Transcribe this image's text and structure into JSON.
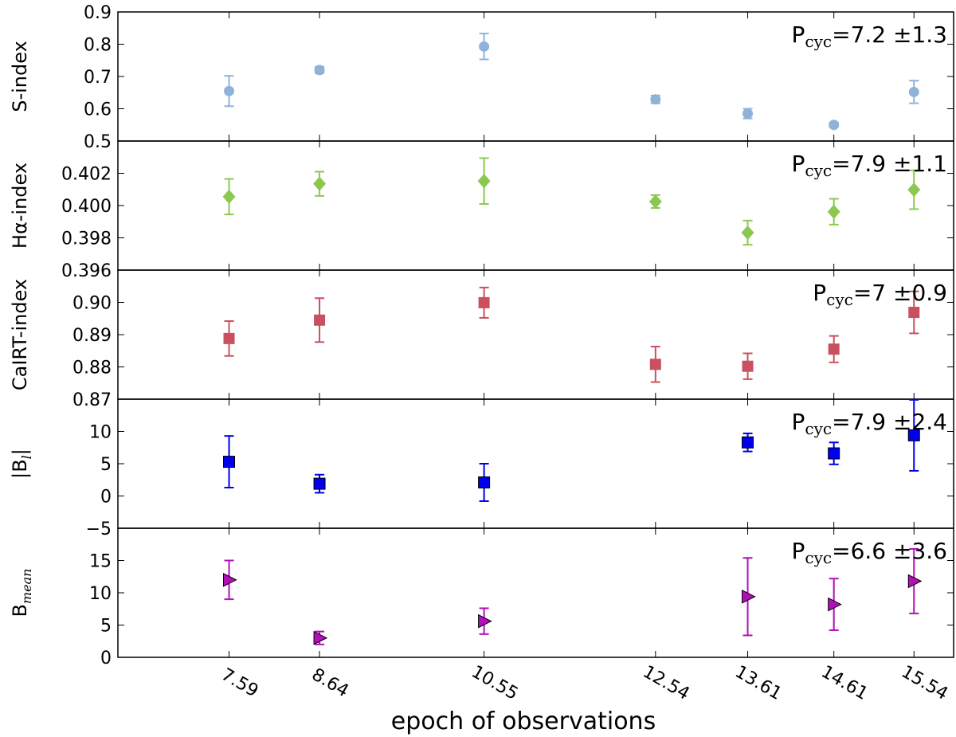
{
  "chart_data": {
    "type": "scatter",
    "xlabel": "epoch of observations",
    "x": [
      7.59,
      8.64,
      10.55,
      12.54,
      13.61,
      14.61,
      15.54
    ],
    "x_tick_labels": [
      "7.59",
      "8.64",
      "10.55",
      "12.54",
      "13.61",
      "14.61",
      "15.54"
    ],
    "xlim": [
      6.3,
      16.0
    ],
    "panels": [
      {
        "ylabel": "S-index",
        "ylabel_sub": "",
        "color": "#8fb3d8",
        "marker": "circle",
        "ylim": [
          0.5,
          0.9
        ],
        "yticks": [
          0.5,
          0.6,
          0.7,
          0.8,
          0.9
        ],
        "ytick_labels": [
          "0.5",
          "0.6",
          "0.7",
          "0.8",
          "0.9"
        ],
        "points": [
          {
            "x": 7.59,
            "y": 0.655,
            "err": 0.047
          },
          {
            "x": 8.64,
            "y": 0.72,
            "err": 0.01
          },
          {
            "x": 10.55,
            "y": 0.793,
            "err": 0.04
          },
          {
            "x": 12.54,
            "y": 0.629,
            "err": 0.012
          },
          {
            "x": 13.61,
            "y": 0.585,
            "err": 0.015
          },
          {
            "x": 14.61,
            "y": 0.55,
            "err": 0.007
          },
          {
            "x": 15.54,
            "y": 0.652,
            "err": 0.035
          }
        ],
        "annotation": {
          "base": "P",
          "sub": "cyc",
          "text": "=7.2 ±1.3"
        }
      },
      {
        "ylabel": "Hα-index",
        "ylabel_sub": "",
        "color": "#8cc850",
        "marker": "diamond",
        "ylim": [
          0.396,
          0.404
        ],
        "yticks": [
          0.396,
          0.398,
          0.4,
          0.402
        ],
        "ytick_labels": [
          "0.396",
          "0.398",
          "0.400",
          "0.402"
        ],
        "points": [
          {
            "x": 7.59,
            "y": 0.40055,
            "err": 0.0011
          },
          {
            "x": 8.64,
            "y": 0.40135,
            "err": 0.00075
          },
          {
            "x": 10.55,
            "y": 0.40152,
            "err": 0.00142
          },
          {
            "x": 12.54,
            "y": 0.40025,
            "err": 0.0004
          },
          {
            "x": 13.61,
            "y": 0.39832,
            "err": 0.00075
          },
          {
            "x": 14.61,
            "y": 0.39962,
            "err": 0.0008
          },
          {
            "x": 15.54,
            "y": 0.40098,
            "err": 0.0012
          }
        ],
        "annotation": {
          "base": "P",
          "sub": "cyc",
          "text": "=7.9 ±1.1"
        }
      },
      {
        "ylabel": "CaIRT-index",
        "ylabel_sub": "",
        "color": "#c8505f",
        "marker": "square",
        "ylim": [
          0.87,
          0.91
        ],
        "yticks": [
          0.87,
          0.88,
          0.89,
          0.9
        ],
        "ytick_labels": [
          "0.87",
          "0.88",
          "0.89",
          "0.90"
        ],
        "points": [
          {
            "x": 7.59,
            "y": 0.8888,
            "err": 0.0054
          },
          {
            "x": 8.64,
            "y": 0.8945,
            "err": 0.0068
          },
          {
            "x": 10.55,
            "y": 0.8999,
            "err": 0.0047
          },
          {
            "x": 12.54,
            "y": 0.8808,
            "err": 0.0055
          },
          {
            "x": 13.61,
            "y": 0.8802,
            "err": 0.004
          },
          {
            "x": 14.61,
            "y": 0.8855,
            "err": 0.0041
          },
          {
            "x": 15.54,
            "y": 0.8969,
            "err": 0.0065
          }
        ],
        "annotation": {
          "base": "P",
          "sub": "cyc",
          "text": "=7 ±0.9"
        }
      },
      {
        "ylabel": "|B",
        "ylabel_sub": "l",
        "ylabel_suffix": "|",
        "color": "#0000ee",
        "marker": "square",
        "ylim": [
          -5,
          15
        ],
        "yticks": [
          -5,
          0,
          5,
          10
        ],
        "ytick_labels": [
          "−5",
          "0",
          "5",
          "10"
        ],
        "points": [
          {
            "x": 7.59,
            "y": 5.3,
            "err": 4.0
          },
          {
            "x": 8.64,
            "y": 1.9,
            "err": 1.4
          },
          {
            "x": 10.55,
            "y": 2.1,
            "err": 2.9
          },
          {
            "x": 13.61,
            "y": 8.3,
            "err": 1.4
          },
          {
            "x": 14.61,
            "y": 6.6,
            "err": 1.7
          },
          {
            "x": 15.54,
            "y": 9.4,
            "err": 5.5
          }
        ],
        "annotation": {
          "base": "P",
          "sub": "cyc",
          "text": "=7.9 ±2.4"
        }
      },
      {
        "ylabel": "B",
        "ylabel_sub": "mean",
        "ylabel_suffix": "",
        "color": "#b010b8",
        "marker": "triangle-right",
        "ylim": [
          0,
          20
        ],
        "yticks": [
          0,
          5,
          10,
          15
        ],
        "ytick_labels": [
          "0",
          "5",
          "10",
          "15"
        ],
        "points": [
          {
            "x": 7.59,
            "y": 12.0,
            "err": 3.0
          },
          {
            "x": 8.64,
            "y": 3.0,
            "err": 1.0
          },
          {
            "x": 10.55,
            "y": 5.6,
            "err": 2.0
          },
          {
            "x": 13.61,
            "y": 9.4,
            "err": 6.0
          },
          {
            "x": 14.61,
            "y": 8.2,
            "err": 4.0
          },
          {
            "x": 15.54,
            "y": 11.8,
            "err": 5.0
          }
        ],
        "annotation": {
          "base": "P",
          "sub": "cyc",
          "text": "=6.6 ±3.6"
        }
      }
    ]
  }
}
